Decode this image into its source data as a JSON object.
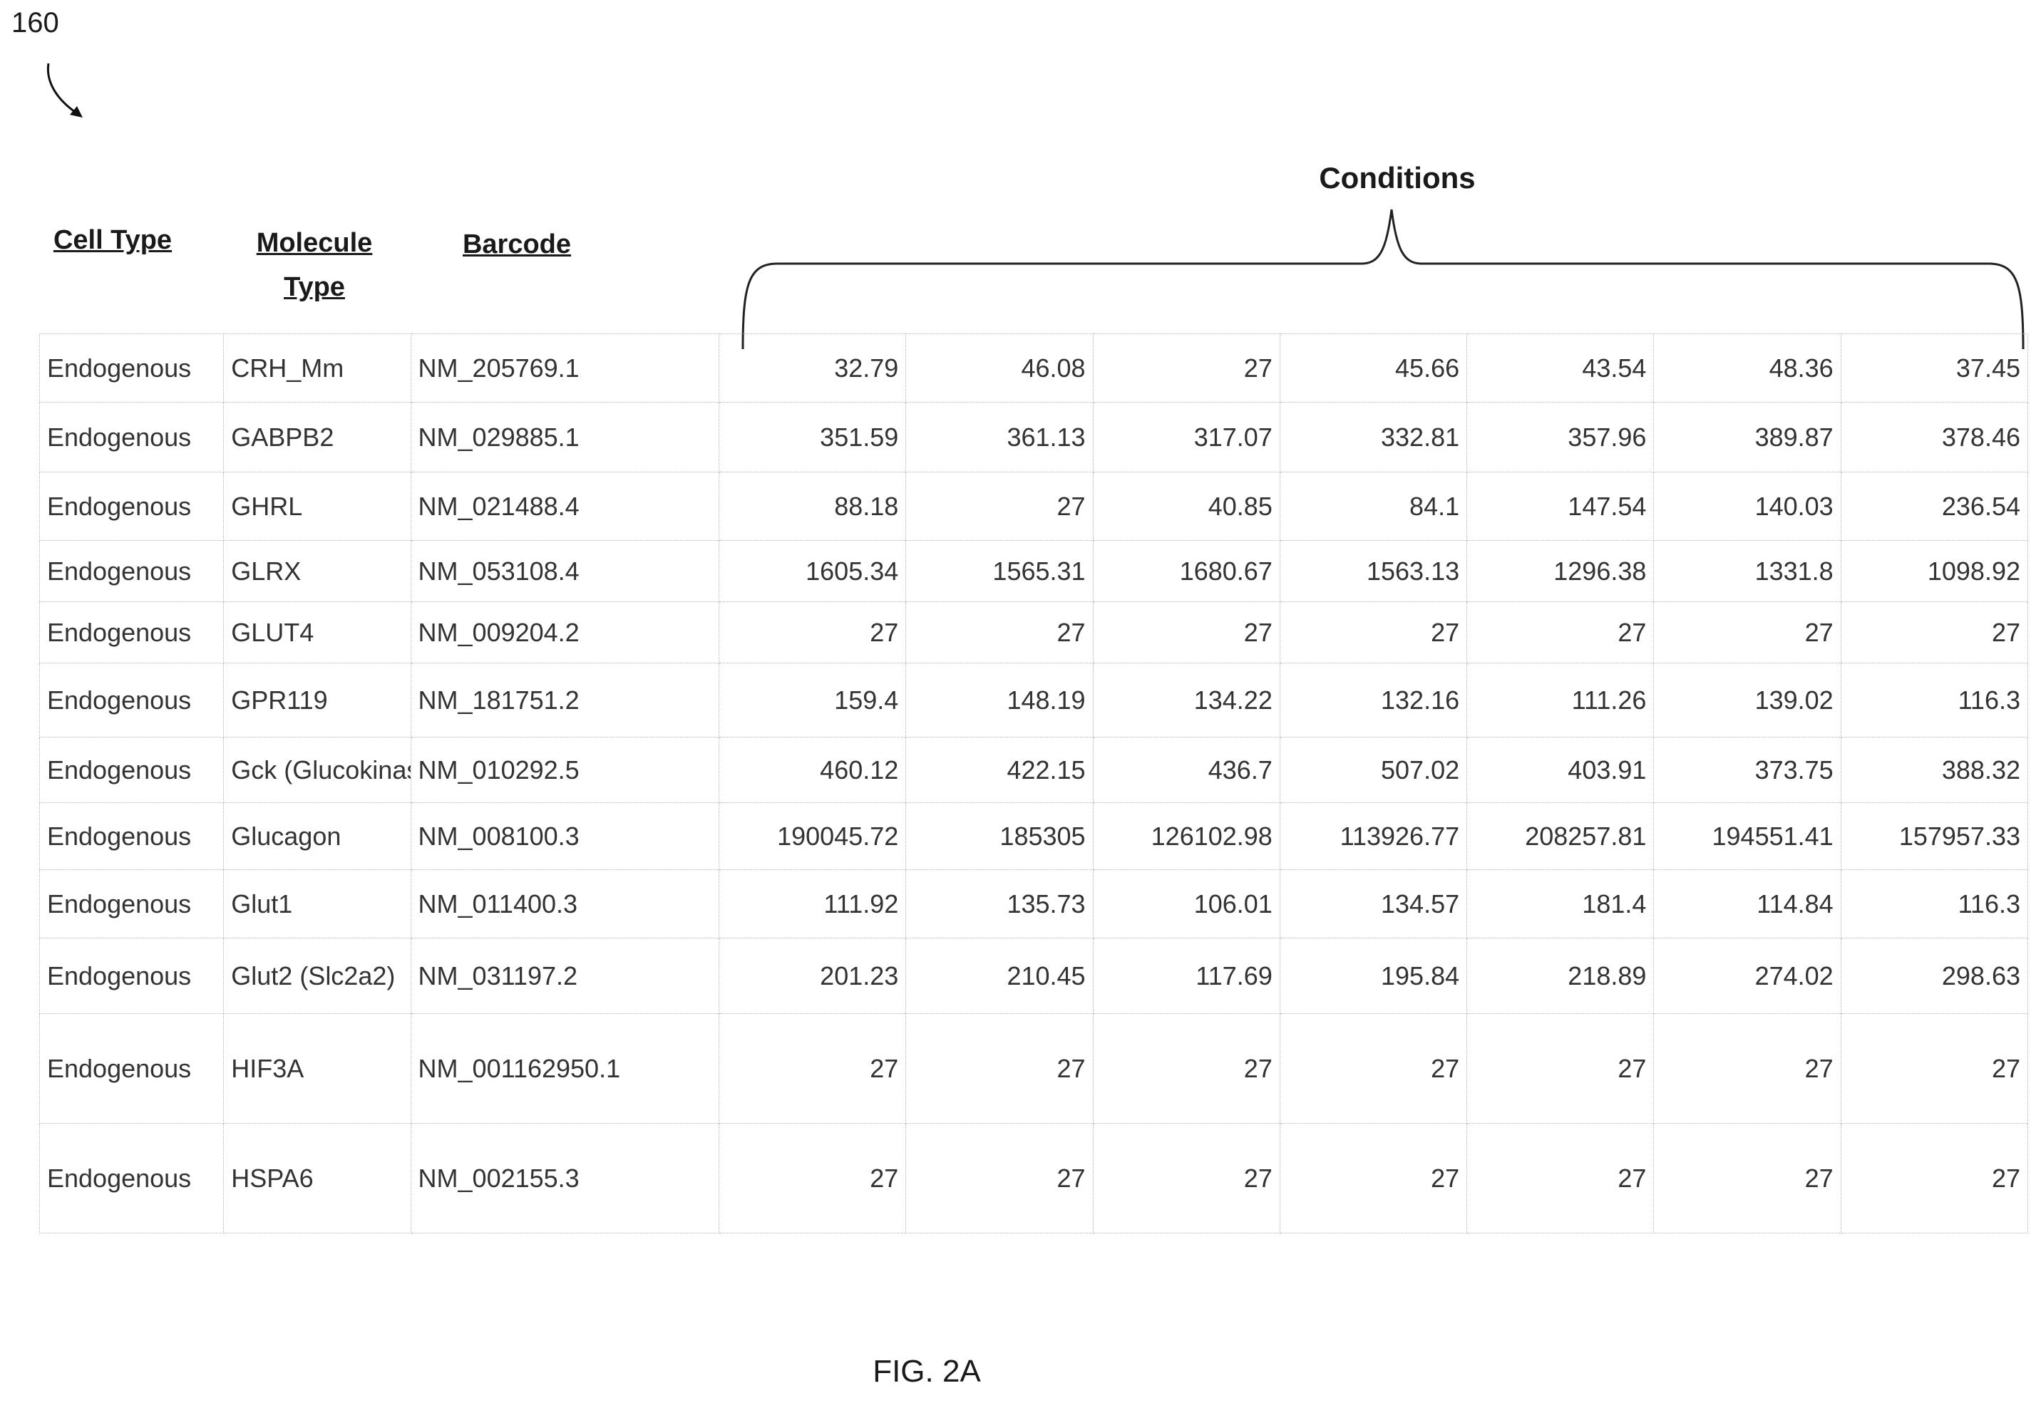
{
  "figure": {
    "reference_number": "160",
    "caption": "FIG. 2A"
  },
  "headers": {
    "cell_type": "Cell Type",
    "molecule_type_line1": "Molecule",
    "molecule_type_line2": "Type",
    "barcode": "Barcode",
    "conditions": "Conditions"
  },
  "rows": [
    {
      "cell_type": "Endogenous",
      "molecule": "CRH_Mm",
      "barcode": "NM_205769.1",
      "values": [
        "32.79",
        "46.08",
        "27",
        "45.66",
        "43.54",
        "48.36",
        "37.45"
      ]
    },
    {
      "cell_type": "Endogenous",
      "molecule": "GABPB2",
      "barcode": "NM_029885.1",
      "values": [
        "351.59",
        "361.13",
        "317.07",
        "332.81",
        "357.96",
        "389.87",
        "378.46"
      ]
    },
    {
      "cell_type": "Endogenous",
      "molecule": "GHRL",
      "barcode": "NM_021488.4",
      "values": [
        "88.18",
        "27",
        "40.85",
        "84.1",
        "147.54",
        "140.03",
        "236.54"
      ]
    },
    {
      "cell_type": "Endogenous",
      "molecule": "GLRX",
      "barcode": "NM_053108.4",
      "values": [
        "1605.34",
        "1565.31",
        "1680.67",
        "1563.13",
        "1296.38",
        "1331.8",
        "1098.92"
      ]
    },
    {
      "cell_type": "Endogenous",
      "molecule": "GLUT4",
      "barcode": "NM_009204.2",
      "values": [
        "27",
        "27",
        "27",
        "27",
        "27",
        "27",
        "27"
      ]
    },
    {
      "cell_type": "Endogenous",
      "molecule": "GPR119",
      "barcode": "NM_181751.2",
      "values": [
        "159.4",
        "148.19",
        "134.22",
        "132.16",
        "111.26",
        "139.02",
        "116.3"
      ]
    },
    {
      "cell_type": "Endogenous",
      "molecule": "Gck (Glucokinase)",
      "barcode": "NM_010292.5",
      "values": [
        "460.12",
        "422.15",
        "436.7",
        "507.02",
        "403.91",
        "373.75",
        "388.32"
      ]
    },
    {
      "cell_type": "Endogenous",
      "molecule": "Glucagon",
      "barcode": "NM_008100.3",
      "values": [
        "190045.72",
        "185305",
        "126102.98",
        "113926.77",
        "208257.81",
        "194551.41",
        "157957.33"
      ]
    },
    {
      "cell_type": "Endogenous",
      "molecule": "Glut1",
      "barcode": "NM_011400.3",
      "values": [
        "111.92",
        "135.73",
        "106.01",
        "134.57",
        "181.4",
        "114.84",
        "116.3"
      ]
    },
    {
      "cell_type": "Endogenous",
      "molecule": "Glut2 (Slc2a2)",
      "barcode": "NM_031197.2",
      "values": [
        "201.23",
        "210.45",
        "117.69",
        "195.84",
        "218.89",
        "274.02",
        "298.63"
      ]
    },
    {
      "cell_type": "Endogenous",
      "molecule": "HIF3A",
      "barcode": "NM_001162950.1",
      "values": [
        "27",
        "27",
        "27",
        "27",
        "27",
        "27",
        "27"
      ]
    },
    {
      "cell_type": "Endogenous",
      "molecule": "HSPA6",
      "barcode": "NM_002155.3",
      "values": [
        "27",
        "27",
        "27",
        "27",
        "27",
        "27",
        "27"
      ]
    }
  ]
}
